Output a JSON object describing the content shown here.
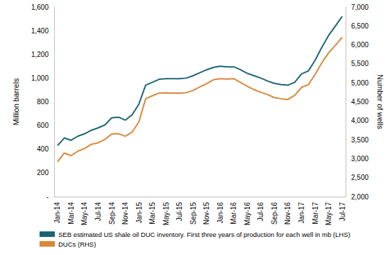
{
  "chart_data": {
    "type": "line",
    "categories": [
      "Jan-14",
      null,
      "Mar-14",
      null,
      "May-14",
      null,
      "Jul-14",
      null,
      "Sep-14",
      null,
      "Nov-14",
      null,
      "Jan-15",
      null,
      "Mar-15",
      null,
      "May-15",
      null,
      "Jul-15",
      null,
      "Sep-15",
      null,
      "Nov-15",
      null,
      "Jan-16",
      null,
      "Mar-16",
      null,
      "May-16",
      null,
      "Jul-16",
      null,
      "Sep-16",
      null,
      "Nov-16",
      null,
      "Jan-17",
      null,
      "Mar-17",
      null,
      "May-17",
      null,
      "Jul-17"
    ],
    "series": [
      {
        "name": "SEB estimated US shale oil DUC inventory. First three years of production for each well in mb (LHS)",
        "color": "#1b6475",
        "values": [
          430,
          495,
          475,
          510,
          530,
          560,
          580,
          605,
          665,
          670,
          645,
          690,
          780,
          940,
          965,
          990,
          995,
          995,
          995,
          1000,
          1020,
          1045,
          1070,
          1090,
          1100,
          1095,
          1095,
          1070,
          1040,
          1020,
          1000,
          975,
          955,
          945,
          940,
          965,
          1035,
          1060,
          1150,
          1260,
          1360,
          1440,
          1520
        ]
      },
      {
        "name": "DUCs (RHS)",
        "color": "#d9873a",
        "axis": "y2",
        "values": [
          2920,
          3150,
          3080,
          3200,
          3270,
          3380,
          3420,
          3510,
          3650,
          3660,
          3590,
          3700,
          3970,
          4580,
          4660,
          4730,
          4740,
          4730,
          4730,
          4740,
          4800,
          4890,
          4980,
          5080,
          5110,
          5100,
          5110,
          5010,
          4910,
          4820,
          4750,
          4690,
          4610,
          4580,
          4560,
          4670,
          4880,
          4950,
          5220,
          5530,
          5790,
          5990,
          6200
        ]
      }
    ],
    "y_label": "Million barrels",
    "y2_label": "Number of wells",
    "ylim": [
      0,
      1600
    ],
    "yticks": [
      {
        "value": 0,
        "label": "-"
      },
      200,
      400,
      600,
      800,
      {
        "value": 1000,
        "label": "1,000"
      },
      {
        "value": 1200,
        "label": "1,200"
      },
      {
        "value": 1400,
        "label": "1,400"
      },
      {
        "value": 1600,
        "label": "1,600"
      }
    ],
    "y2lim": [
      2000,
      7000
    ],
    "y2ticks": [
      {
        "value": 2000,
        "label": "2,000"
      },
      {
        "value": 2500,
        "label": "2,500"
      },
      {
        "value": 3000,
        "label": "3,000"
      },
      {
        "value": 3500,
        "label": "3,500"
      },
      {
        "value": 4000,
        "label": "4,000"
      },
      {
        "value": 4500,
        "label": "4,500"
      },
      {
        "value": 5000,
        "label": "5,000"
      },
      {
        "value": 5500,
        "label": "5,500"
      },
      {
        "value": 6000,
        "label": "6,000"
      },
      {
        "value": 6500,
        "label": "6,500"
      },
      {
        "value": 7000,
        "label": "7,000"
      }
    ],
    "grid": false,
    "legend": "bottom"
  }
}
